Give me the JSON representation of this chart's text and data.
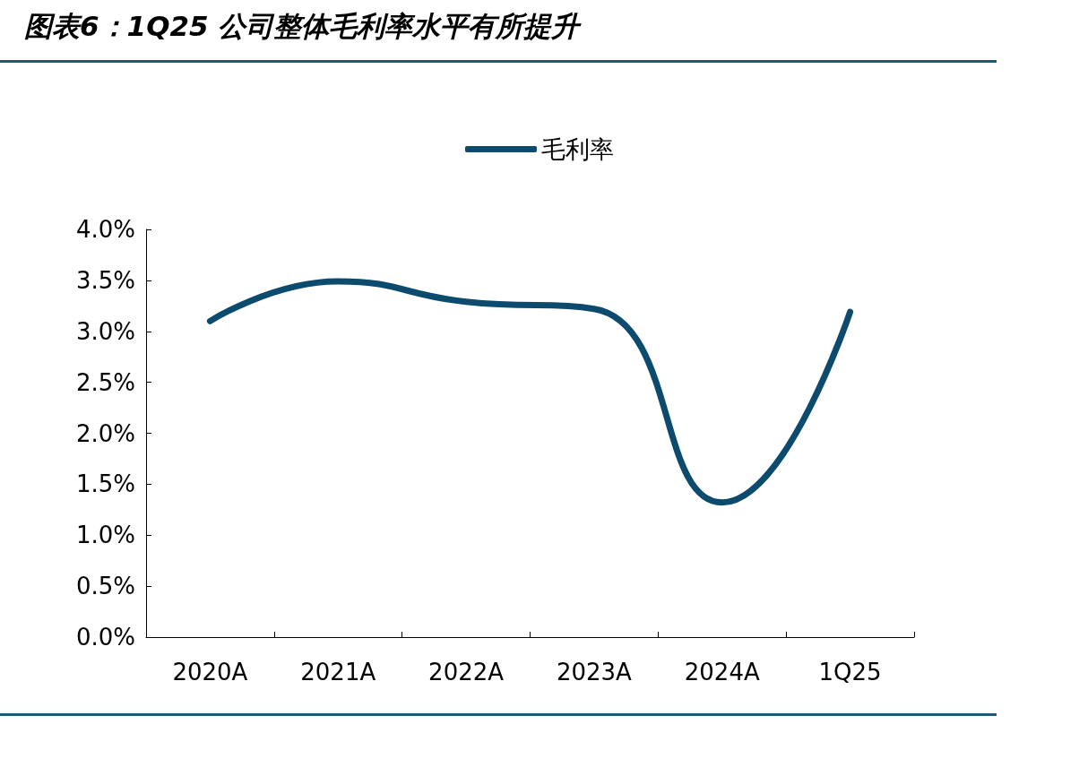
{
  "chart_data": {
    "type": "line",
    "title": "图表6：1Q25 公司整体毛利率水平有所提升",
    "categories": [
      "2020A",
      "2021A",
      "2022A",
      "2023A",
      "2024A",
      "1Q25"
    ],
    "series": [
      {
        "name": "毛利率",
        "color": "#0d4b6e",
        "values": [
          3.1,
          3.49,
          3.29,
          3.22,
          1.32,
          3.19
        ]
      }
    ],
    "ylim": [
      0,
      4
    ],
    "yticks": [
      {
        "value": 0,
        "label": "0.0%"
      },
      {
        "value": 0.5,
        "label": "0.5%"
      },
      {
        "value": 1,
        "label": "1.0%"
      },
      {
        "value": 1.5,
        "label": "1.5%"
      },
      {
        "value": 2,
        "label": "2.0%"
      },
      {
        "value": 2.5,
        "label": "2.5%"
      },
      {
        "value": 3,
        "label": "3.0%"
      },
      {
        "value": 3.5,
        "label": "3.5%"
      },
      {
        "value": 4,
        "label": "4.0%"
      }
    ],
    "grid": false,
    "legend": "top",
    "marker": "none",
    "line_style": "solid"
  }
}
